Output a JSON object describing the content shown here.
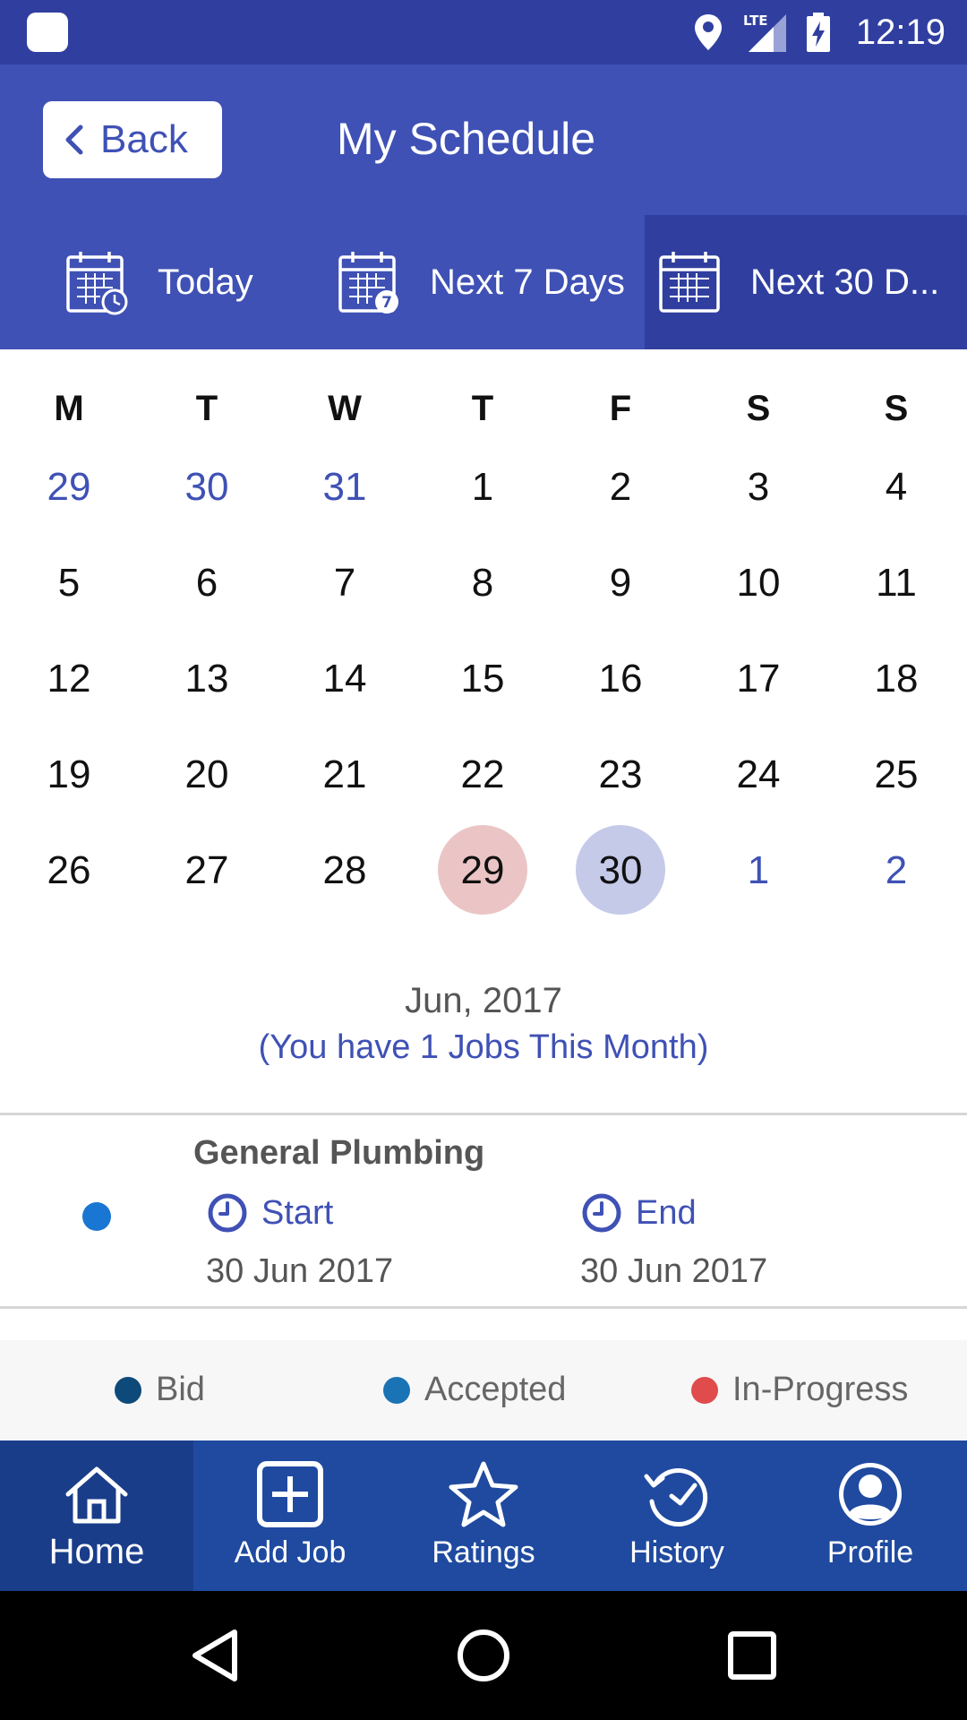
{
  "status_bar": {
    "time": "12:19",
    "network": "LTE",
    "icons": [
      "app-square-icon",
      "location-icon",
      "lte-signal-icon",
      "battery-charging-icon"
    ]
  },
  "app_bar": {
    "back_label": "Back",
    "title": "My Schedule"
  },
  "range_tabs": [
    {
      "label": "Today",
      "icon": "calendar-clock-icon",
      "active": false
    },
    {
      "label": "Next 7 Days",
      "icon": "calendar-7-icon",
      "active": false
    },
    {
      "label": "Next 30 D...",
      "icon": "calendar-grid-icon",
      "active": true
    }
  ],
  "calendar": {
    "weekdays": [
      "M",
      "T",
      "W",
      "T",
      "F",
      "S",
      "S"
    ],
    "weeks": [
      [
        {
          "d": "29",
          "other": true
        },
        {
          "d": "30",
          "other": true
        },
        {
          "d": "31",
          "other": true
        },
        {
          "d": "1"
        },
        {
          "d": "2"
        },
        {
          "d": "3"
        },
        {
          "d": "4"
        }
      ],
      [
        {
          "d": "5"
        },
        {
          "d": "6"
        },
        {
          "d": "7"
        },
        {
          "d": "8"
        },
        {
          "d": "9"
        },
        {
          "d": "10"
        },
        {
          "d": "11"
        }
      ],
      [
        {
          "d": "12"
        },
        {
          "d": "13"
        },
        {
          "d": "14"
        },
        {
          "d": "15"
        },
        {
          "d": "16"
        },
        {
          "d": "17"
        },
        {
          "d": "18"
        }
      ],
      [
        {
          "d": "19"
        },
        {
          "d": "20"
        },
        {
          "d": "21"
        },
        {
          "d": "22"
        },
        {
          "d": "23"
        },
        {
          "d": "24"
        },
        {
          "d": "25"
        }
      ],
      [
        {
          "d": "26"
        },
        {
          "d": "27"
        },
        {
          "d": "28"
        },
        {
          "d": "29",
          "state": "today"
        },
        {
          "d": "30",
          "state": "selected"
        },
        {
          "d": "1",
          "other": true
        },
        {
          "d": "2",
          "other": true
        }
      ]
    ],
    "month_label": "Jun, 2017",
    "jobs_summary": "(You have 1 Jobs This Month)"
  },
  "job": {
    "title": "General Plumbing",
    "status_color": "#1976d2",
    "start_label": "Start",
    "start_date": "30 Jun 2017",
    "end_label": "End",
    "end_date": "30 Jun 2017"
  },
  "legend": {
    "bid": {
      "label": "Bid",
      "color": "#0d4a7a"
    },
    "accepted": {
      "label": "Accepted",
      "color": "#1a73b5"
    },
    "in_progress": {
      "label": "In-Progress",
      "color": "#e04b4b"
    }
  },
  "bottom_nav": [
    {
      "label": "Home",
      "icon": "home-icon",
      "active": true
    },
    {
      "label": "Add Job",
      "icon": "add-box-icon",
      "active": false
    },
    {
      "label": "Ratings",
      "icon": "star-icon",
      "active": false
    },
    {
      "label": "History",
      "icon": "history-icon",
      "active": false
    },
    {
      "label": "Profile",
      "icon": "profile-icon",
      "active": false
    }
  ],
  "colors": {
    "primary": "#3f51b5",
    "primary_dark": "#303f9f",
    "nav": "#1f4aa0",
    "today_highlight": "#ebc5c5",
    "selected_highlight": "#c5cae9"
  }
}
